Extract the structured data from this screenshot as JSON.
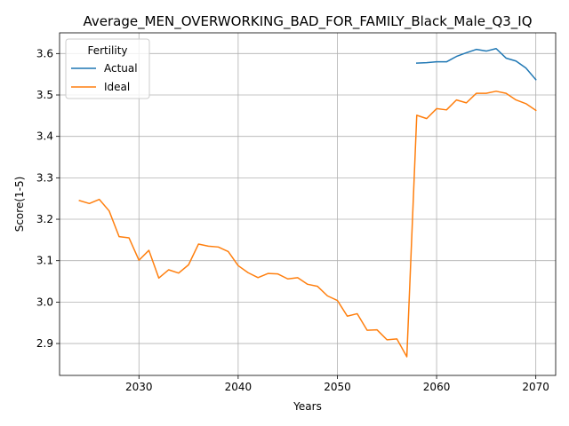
{
  "chart_data": {
    "type": "line",
    "title": "Average_MEN_OVERWORKING_BAD_FOR_FAMILY_Black_Male_Q3_IQ",
    "xlabel": "Years",
    "ylabel": "Score(1-5)",
    "xlim": [
      2022,
      2072
    ],
    "ylim": [
      2.823,
      3.65
    ],
    "xticks": [
      2030,
      2040,
      2050,
      2060,
      2070
    ],
    "yticks": [
      2.9,
      3.0,
      3.1,
      3.2,
      3.3,
      3.4,
      3.5,
      3.6
    ],
    "grid": true,
    "legend": {
      "title": "Fertility",
      "position": "upper-left"
    },
    "series": [
      {
        "name": "Actual",
        "color": "#1f77b4",
        "x": [
          2058,
          2059,
          2060,
          2061,
          2062,
          2063,
          2064,
          2065,
          2066,
          2067,
          2068,
          2069,
          2070
        ],
        "y": [
          3.577,
          3.578,
          3.58,
          3.58,
          3.593,
          3.602,
          3.61,
          3.606,
          3.612,
          3.589,
          3.582,
          3.565,
          3.537
        ]
      },
      {
        "name": "Ideal",
        "color": "#ff7f0e",
        "x": [
          2024,
          2025,
          2026,
          2027,
          2028,
          2029,
          2030,
          2031,
          2032,
          2033,
          2034,
          2035,
          2036,
          2037,
          2038,
          2039,
          2040,
          2041,
          2042,
          2043,
          2044,
          2045,
          2046,
          2047,
          2048,
          2049,
          2050,
          2051,
          2052,
          2053,
          2054,
          2055,
          2056,
          2057,
          2058,
          2059,
          2060,
          2061,
          2062,
          2063,
          2064,
          2065,
          2066,
          2067,
          2068,
          2069,
          2070
        ],
        "y": [
          3.245,
          3.238,
          3.248,
          3.22,
          3.158,
          3.155,
          3.101,
          3.125,
          3.058,
          3.078,
          3.07,
          3.09,
          3.14,
          3.135,
          3.133,
          3.122,
          3.088,
          3.071,
          3.059,
          3.069,
          3.068,
          3.056,
          3.059,
          3.043,
          3.038,
          3.015,
          3.004,
          2.966,
          2.972,
          2.932,
          2.933,
          2.909,
          2.911,
          2.868,
          3.451,
          3.443,
          3.467,
          3.464,
          3.488,
          3.481,
          3.504,
          3.504,
          3.509,
          3.504,
          3.488,
          3.479,
          3.463
        ]
      }
    ]
  }
}
